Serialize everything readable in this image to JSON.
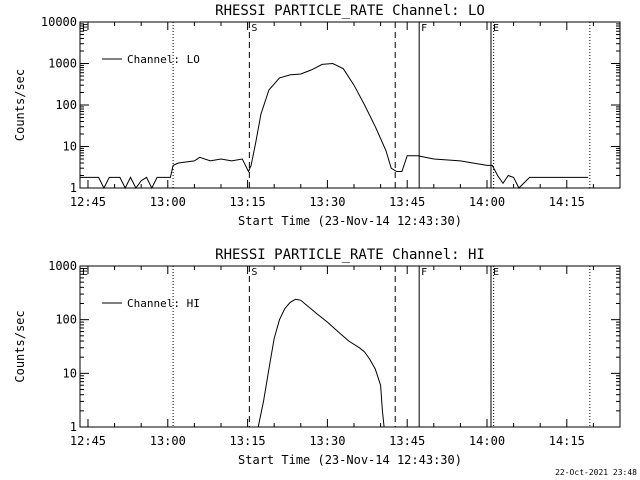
{
  "footer": {
    "date_stamp": "22-Oct-2021 23:48"
  },
  "chart_data": [
    {
      "type": "line",
      "title": "RHESSI PARTICLE_RATE Channel: LO",
      "xlabel": "Start Time (23-Nov-14 12:43:30)",
      "ylabel": "Counts/sec",
      "legend": "Channel: LO",
      "legend_position": "top-left",
      "yscale": "log",
      "grid": false,
      "xlim": [
        "12:43:30",
        "14:25:00"
      ],
      "ylim": [
        1,
        10000
      ],
      "xticks": [
        "12:45",
        "13:00",
        "13:15",
        "13:30",
        "13:45",
        "14:00",
        "14:15"
      ],
      "yticks": [
        "1",
        "10",
        "100",
        "1000",
        "10000"
      ],
      "vlines": [
        {
          "time": "12:43:30",
          "label": "E",
          "style": "dotted"
        },
        {
          "time": "13:01:00",
          "label": "",
          "style": "dotted"
        },
        {
          "time": "13:15:20",
          "label": "S",
          "style": "dashed"
        },
        {
          "time": "13:42:45",
          "label": "",
          "style": "dashed"
        },
        {
          "time": "13:47:15",
          "label": "F",
          "style": "solid"
        },
        {
          "time": "14:00:45",
          "label": "E",
          "style": "solid"
        },
        {
          "time": "14:01:15",
          "label": "",
          "style": "dotted"
        },
        {
          "time": "14:19:20",
          "label": "",
          "style": "dotted"
        }
      ],
      "series": [
        {
          "name": "Channel: LO",
          "x": [
            "12:43:30",
            "12:45:00",
            "12:47:00",
            "12:48:00",
            "12:49:00",
            "12:50:00",
            "12:51:00",
            "12:52:00",
            "12:53:00",
            "12:54:00",
            "12:55:00",
            "12:56:00",
            "12:57:00",
            "12:58:00",
            "13:00:30",
            "13:01:00",
            "13:02:00",
            "13:05:00",
            "13:06:00",
            "13:08:00",
            "13:10:00",
            "13:12:00",
            "13:14:00",
            "13:15:10",
            "13:15:40",
            "13:16:30",
            "13:17:30",
            "13:19:00",
            "13:21:00",
            "13:23:00",
            "13:25:00",
            "13:27:00",
            "13:29:00",
            "13:31:00",
            "13:33:00",
            "13:35:00",
            "13:37:00",
            "13:39:00",
            "13:41:00",
            "13:42:00",
            "13:43:00",
            "13:44:00",
            "13:45:00",
            "13:47:00",
            "13:50:00",
            "13:55:00",
            "14:00:00",
            "14:01:00",
            "14:02:00",
            "14:03:00",
            "14:04:00",
            "14:05:00",
            "14:06:00",
            "14:08:00",
            "14:10:00",
            "14:13:00",
            "14:15:00",
            "14:17:00",
            "14:19:00"
          ],
          "y": [
            1.8,
            1.8,
            1.8,
            1,
            1.8,
            1.8,
            1.8,
            1,
            1.8,
            1,
            1.5,
            1.8,
            1,
            1.8,
            1.8,
            3.5,
            4,
            4.5,
            5.5,
            4.5,
            5,
            4.5,
            5,
            2.5,
            3.5,
            12,
            60,
            230,
            450,
            530,
            560,
            700,
            950,
            1000,
            750,
            300,
            100,
            30,
            8,
            3,
            2.5,
            2.5,
            6,
            6,
            5,
            4.5,
            3.5,
            3.5,
            2,
            1.3,
            2,
            1.8,
            1,
            1.8,
            1.8,
            1.8,
            1.8,
            1.8,
            1.8
          ]
        }
      ]
    },
    {
      "type": "line",
      "title": "RHESSI PARTICLE_RATE Channel: HI",
      "xlabel": "Start Time (23-Nov-14 12:43:30)",
      "ylabel": "Counts/sec",
      "legend": "Channel: HI",
      "legend_position": "top-left",
      "yscale": "log",
      "grid": false,
      "xlim": [
        "12:43:30",
        "14:25:00"
      ],
      "ylim": [
        1,
        1000
      ],
      "xticks": [
        "12:45",
        "13:00",
        "13:15",
        "13:30",
        "13:45",
        "14:00",
        "14:15"
      ],
      "yticks": [
        "1",
        "10",
        "100",
        "1000"
      ],
      "vlines": [
        {
          "time": "12:43:30",
          "label": "E",
          "style": "dotted"
        },
        {
          "time": "13:01:00",
          "label": "",
          "style": "dotted"
        },
        {
          "time": "13:15:20",
          "label": "S",
          "style": "dashed"
        },
        {
          "time": "13:42:45",
          "label": "",
          "style": "dashed"
        },
        {
          "time": "13:47:15",
          "label": "F",
          "style": "solid"
        },
        {
          "time": "14:00:45",
          "label": "E",
          "style": "solid"
        },
        {
          "time": "14:01:15",
          "label": "",
          "style": "dotted"
        },
        {
          "time": "14:19:20",
          "label": "",
          "style": "dotted"
        }
      ],
      "series": [
        {
          "name": "Channel: HI",
          "x": [
            "13:17:00",
            "13:18:00",
            "13:19:00",
            "13:20:00",
            "13:21:00",
            "13:22:00",
            "13:23:00",
            "13:24:00",
            "13:25:00",
            "13:26:00",
            "13:28:00",
            "13:30:00",
            "13:32:00",
            "13:34:00",
            "13:36:00",
            "13:37:00",
            "13:38:00",
            "13:39:00",
            "13:40:00",
            "13:40:20",
            "13:40:40"
          ],
          "y": [
            1,
            3,
            12,
            45,
            100,
            160,
            210,
            240,
            230,
            190,
            130,
            90,
            60,
            40,
            30,
            25,
            18,
            12,
            6,
            2,
            1
          ]
        }
      ]
    }
  ]
}
